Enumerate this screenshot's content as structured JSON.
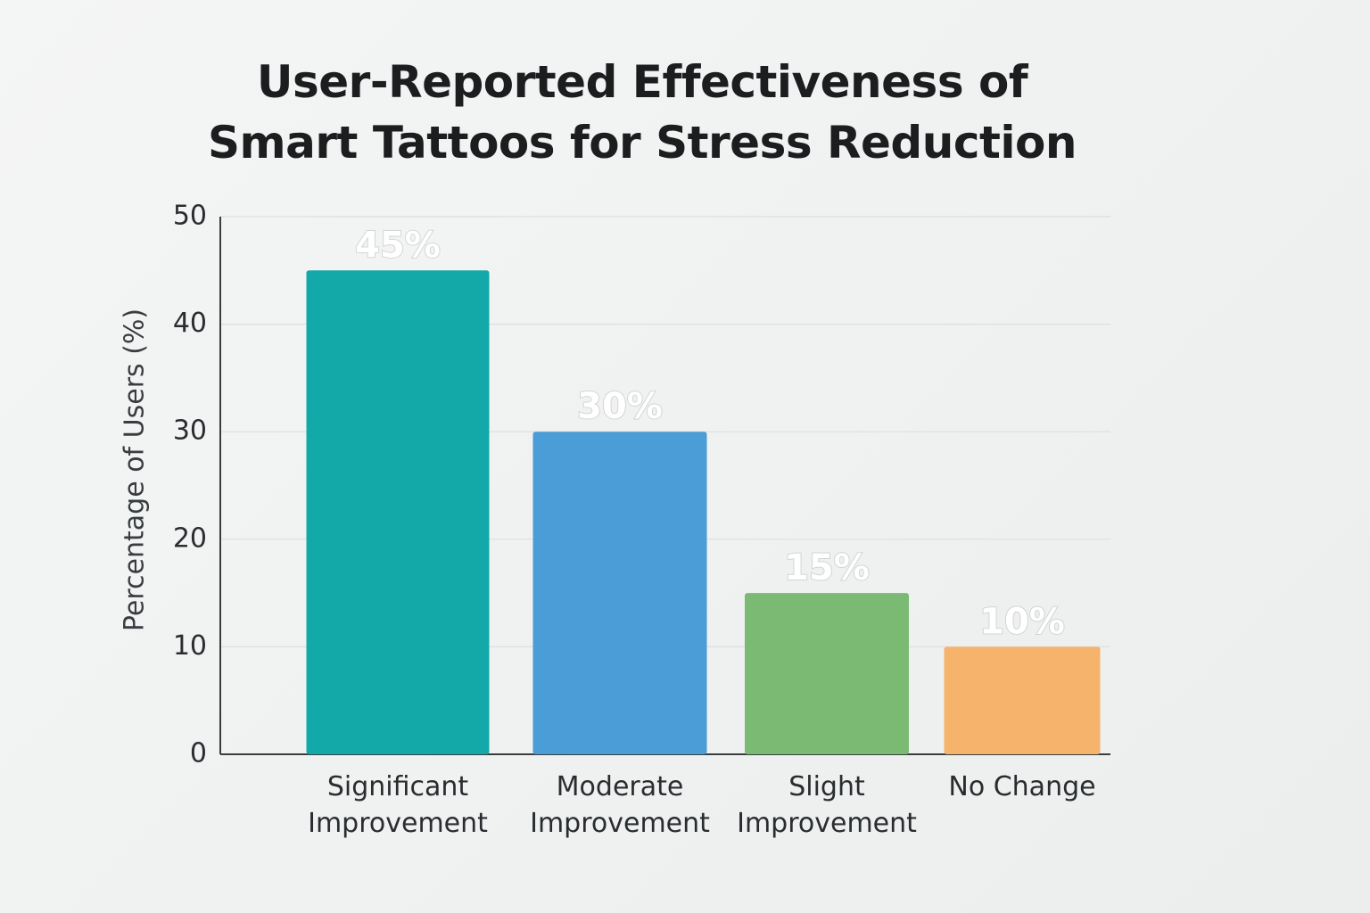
{
  "chart_data": {
    "type": "bar",
    "title": "User-Reported Effectiveness of Smart Tattoos for Stress Reduction",
    "y_label": "Percentage of Users (%)",
    "categories": [
      "Significant Improvement",
      "Moderate Improvement",
      "Slight Improvement",
      "No Change"
    ],
    "values": [
      45,
      30,
      15,
      10
    ],
    "value_labels": [
      "45%",
      "30%",
      "15%",
      "10%"
    ],
    "colors": [
      "#12a9a8",
      "#4a9dd6",
      "#7aba72",
      "#f5b36b"
    ],
    "ylim": [
      0,
      50
    ],
    "yticks": [
      0,
      10,
      20,
      30,
      40,
      50
    ],
    "grid": true
  }
}
